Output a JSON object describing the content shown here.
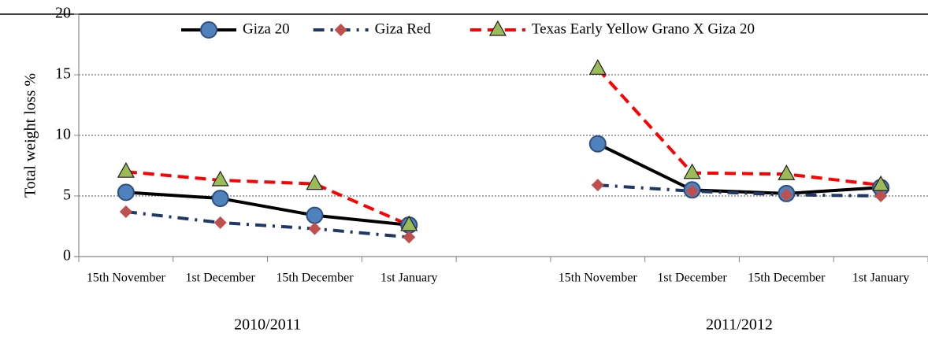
{
  "chart_data": {
    "type": "line",
    "y_label": "Total weight loss %",
    "categories": [
      "15th November",
      "1st December",
      "15th December",
      "1st January",
      null,
      "15th November",
      "1st December",
      "15th December",
      "1st January"
    ],
    "category_groups": [
      "2010/2011",
      "2011/2012"
    ],
    "series": [
      {
        "name": "Giza 20",
        "color": "#000000",
        "marker_color": "#4f81bd",
        "marker": "circle",
        "dash": "solid",
        "values": [
          5.3,
          4.8,
          3.4,
          2.6,
          null,
          9.3,
          5.5,
          5.2,
          5.7
        ]
      },
      {
        "name": "Giza Red",
        "color": "#1f3864",
        "marker_color": "#c0504d",
        "marker": "diamond",
        "dash": "dashdot",
        "values": [
          3.7,
          2.8,
          2.3,
          1.6,
          null,
          5.9,
          5.4,
          5.1,
          5.0
        ]
      },
      {
        "name": "Texas Early Yellow Grano X Giza 20",
        "color": "#ff0000",
        "marker_color": "#9bbb59",
        "marker": "triangle",
        "dash": "dash",
        "values": [
          7.0,
          6.3,
          6.0,
          2.6,
          null,
          15.5,
          6.9,
          6.8,
          5.9
        ]
      }
    ],
    "ylim": [
      0,
      20
    ],
    "yticks": [
      0,
      5,
      10,
      15,
      20
    ],
    "grid": true,
    "legend": "top"
  }
}
